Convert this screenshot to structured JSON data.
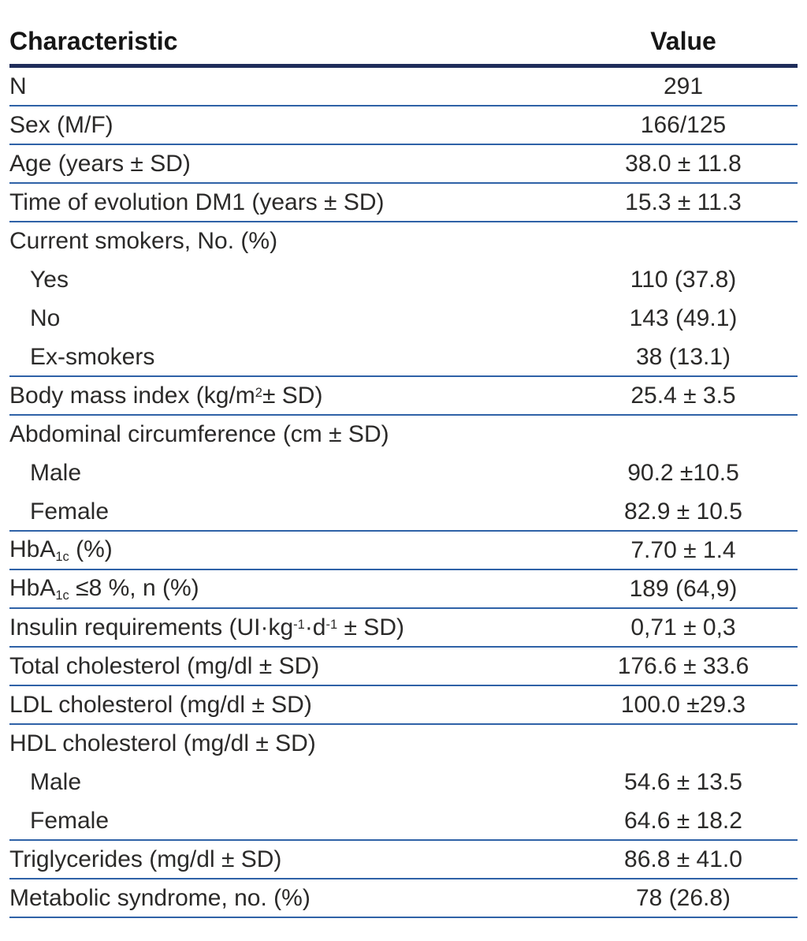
{
  "table": {
    "header": {
      "characteristic": "Characteristic",
      "value": "Value"
    },
    "colors": {
      "text": "#2b2a29",
      "header_rule": "#1f2d5a",
      "row_rule": "#2f62a7"
    },
    "rows": [
      {
        "label": [
          {
            "t": "N"
          }
        ],
        "value": "291",
        "indent": false,
        "rule_after": true
      },
      {
        "label": [
          {
            "t": "Sex (M/F)"
          }
        ],
        "value": "166/125",
        "indent": false,
        "rule_after": true
      },
      {
        "label": [
          {
            "t": "Age (years ± SD)"
          }
        ],
        "value": "38.0 ± 11.8",
        "indent": false,
        "rule_after": true
      },
      {
        "label": [
          {
            "t": "Time of evolution DM1 (years ± SD)"
          }
        ],
        "value": "15.3 ± 11.3",
        "indent": false,
        "rule_after": true
      },
      {
        "label": [
          {
            "t": "Current smokers, No. (%)"
          }
        ],
        "value": "",
        "indent": false,
        "rule_after": false
      },
      {
        "label": [
          {
            "t": "Yes"
          }
        ],
        "value": "110 (37.8)",
        "indent": true,
        "rule_after": false
      },
      {
        "label": [
          {
            "t": "No"
          }
        ],
        "value": "143 (49.1)",
        "indent": true,
        "rule_after": false
      },
      {
        "label": [
          {
            "t": "Ex-smokers"
          }
        ],
        "value": "38 (13.1)",
        "indent": true,
        "rule_after": true
      },
      {
        "label": [
          {
            "t": "Body mass index (kg/m"
          },
          {
            "t": "2",
            "s": "sup"
          },
          {
            "t": "± SD)"
          }
        ],
        "value": "25.4 ± 3.5",
        "indent": false,
        "rule_after": true
      },
      {
        "label": [
          {
            "t": "Abdominal circumference (cm ± SD)"
          }
        ],
        "value": "",
        "indent": false,
        "rule_after": false
      },
      {
        "label": [
          {
            "t": "Male"
          }
        ],
        "value": "90.2 ±10.5",
        "indent": true,
        "rule_after": false
      },
      {
        "label": [
          {
            "t": "Female"
          }
        ],
        "value": "82.9 ± 10.5",
        "indent": true,
        "rule_after": true
      },
      {
        "label": [
          {
            "t": "HbA"
          },
          {
            "t": "1c",
            "s": "sub"
          },
          {
            "t": " (%)"
          }
        ],
        "value": "7.70 ± 1.4",
        "indent": false,
        "rule_after": true
      },
      {
        "label": [
          {
            "t": "HbA"
          },
          {
            "t": "1c",
            "s": "sub"
          },
          {
            "t": " ≤8 %, n (%)"
          }
        ],
        "value": "189 (64,9)",
        "indent": false,
        "rule_after": true
      },
      {
        "label": [
          {
            "t": "Insulin requirements (UI·kg"
          },
          {
            "t": "-1",
            "s": "sup"
          },
          {
            "t": "·d"
          },
          {
            "t": "-1",
            "s": "sup"
          },
          {
            "t": " ± SD)"
          }
        ],
        "value": "0,71 ± 0,3",
        "indent": false,
        "rule_after": true
      },
      {
        "label": [
          {
            "t": "Total cholesterol (mg/dl ± SD)"
          }
        ],
        "value": "176.6 ± 33.6",
        "indent": false,
        "rule_after": true
      },
      {
        "label": [
          {
            "t": "LDL cholesterol (mg/dl ± SD)"
          }
        ],
        "value": "100.0 ±29.3",
        "indent": false,
        "rule_after": true
      },
      {
        "label": [
          {
            "t": "HDL cholesterol (mg/dl ± SD)"
          }
        ],
        "value": "",
        "indent": false,
        "rule_after": false
      },
      {
        "label": [
          {
            "t": "Male"
          }
        ],
        "value": "54.6 ± 13.5",
        "indent": true,
        "rule_after": false
      },
      {
        "label": [
          {
            "t": "Female"
          }
        ],
        "value": "64.6 ± 18.2",
        "indent": true,
        "rule_after": true
      },
      {
        "label": [
          {
            "t": "Triglycerides (mg/dl ± SD)"
          }
        ],
        "value": "86.8 ± 41.0",
        "indent": false,
        "rule_after": true
      },
      {
        "label": [
          {
            "t": "Metabolic syndrome, no. (%)"
          }
        ],
        "value": "78  (26.8)",
        "indent": false,
        "rule_after": true
      }
    ]
  }
}
